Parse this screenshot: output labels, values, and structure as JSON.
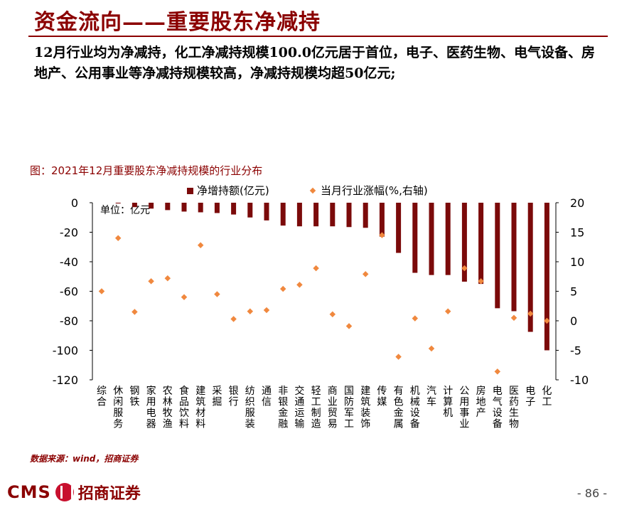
{
  "page": {
    "title": "资金流向——重要股东净减持",
    "subtitle": "12月行业均为净减持，化工净减持规模100.0亿元居于首位，电子、医药生物、电气设备、房地产、公用事业等净减持规模较高，净减持规模均超50亿元;",
    "chart_caption": "图：2021年12月重要股东净减持规模的行业分布",
    "unit_label": "单位：亿元",
    "source": "数据来源：wind，招商证券",
    "logo_text": "CMS",
    "logo_cn": "招商证券",
    "page_number": "- 86 -"
  },
  "chart_data": {
    "type": "bar",
    "categories": [
      "综合",
      "休闲服务",
      "钢铁",
      "家用电器",
      "农林牧渔",
      "食品饮料",
      "建筑材料",
      "采掘",
      "银行",
      "纺织服装",
      "通信",
      "非银金融",
      "交通运输",
      "轻工制造",
      "商业贸易",
      "国防军工",
      "建筑装饰",
      "传媒",
      "有色金属",
      "机械设备",
      "汽车",
      "计算机",
      "公用事业",
      "房地产",
      "电气设备",
      "医药生物",
      "电子",
      "化工"
    ],
    "series": [
      {
        "name": "净增持额(亿元)",
        "axis": "left",
        "type": "bar",
        "color": "#7b0a0a",
        "values": [
          0,
          -0.5,
          -3,
          -4,
          -5,
          -6,
          -6.5,
          -7,
          -8,
          -10,
          -12,
          -15.5,
          -16,
          -16,
          -16,
          -16.5,
          -17,
          -23,
          -34,
          -47.5,
          -49,
          -49,
          -53.5,
          -55,
          -71.5,
          -73.5,
          -87.5,
          -100
        ]
      },
      {
        "name": "当月行业涨幅(%,右轴)",
        "axis": "right",
        "type": "scatter",
        "color": "#f0883e",
        "values": [
          5,
          14,
          1.5,
          6.7,
          7.2,
          4,
          12.8,
          4.5,
          0.3,
          1.6,
          1.8,
          5.4,
          6.1,
          8.9,
          1.1,
          -0.9,
          7.9,
          14.5,
          -6.1,
          0.4,
          -4.7,
          1.6,
          8.9,
          6.7,
          -8.6,
          0.5,
          1.2,
          0
        ]
      }
    ],
    "yleft": {
      "min": -120,
      "max": 0,
      "ticks": [
        0,
        -20,
        -40,
        -60,
        -80,
        -100,
        -120
      ]
    },
    "yright": {
      "min": -10,
      "max": 20,
      "ticks": [
        20,
        15,
        10,
        5,
        0,
        -5,
        -10
      ]
    },
    "legend_position": "top"
  }
}
